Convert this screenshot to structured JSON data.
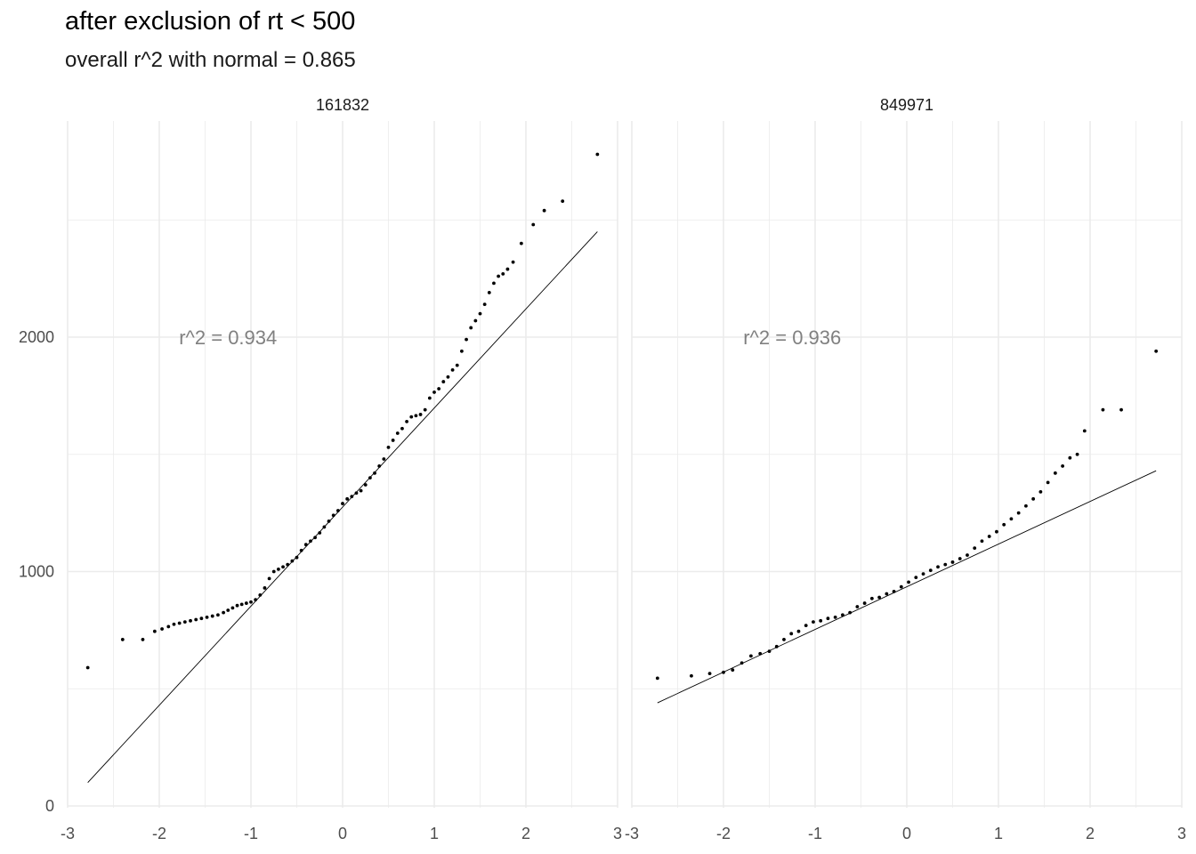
{
  "title": "after exclusion of rt < 500",
  "subtitle": "overall r^2 with normal = 0.865",
  "colors": {
    "grid": "#ebebeb",
    "points": "#000000",
    "line": "#000000",
    "annotation": "#808080"
  },
  "chart_data": {
    "type": "scatter",
    "facets": [
      {
        "strip": "161832",
        "annotation": "r^2 = 0.934",
        "annotation_pos": {
          "x": -1.25,
          "y": 2000
        },
        "line": {
          "x": [
            -2.78,
            2.78
          ],
          "y": [
            100,
            2450
          ]
        },
        "points": {
          "x": [
            -2.78,
            -2.4,
            -2.18,
            -2.05,
            -1.97,
            -1.9,
            -1.84,
            -1.78,
            -1.72,
            -1.66,
            -1.6,
            -1.54,
            -1.48,
            -1.42,
            -1.36,
            -1.3,
            -1.25,
            -1.2,
            -1.15,
            -1.1,
            -1.05,
            -1.0,
            -0.95,
            -0.9,
            -0.85,
            -0.8,
            -0.75,
            -0.7,
            -0.65,
            -0.6,
            -0.55,
            -0.5,
            -0.45,
            -0.4,
            -0.35,
            -0.3,
            -0.25,
            -0.2,
            -0.15,
            -0.1,
            -0.05,
            0.0,
            0.05,
            0.1,
            0.15,
            0.2,
            0.25,
            0.3,
            0.35,
            0.4,
            0.45,
            0.5,
            0.55,
            0.6,
            0.65,
            0.7,
            0.75,
            0.8,
            0.85,
            0.9,
            0.95,
            1.0,
            1.05,
            1.1,
            1.15,
            1.2,
            1.25,
            1.3,
            1.35,
            1.4,
            1.45,
            1.5,
            1.55,
            1.6,
            1.65,
            1.7,
            1.75,
            1.8,
            1.86,
            1.95,
            2.08,
            2.2,
            2.4,
            2.78
          ],
          "y": [
            590,
            710,
            710,
            745,
            755,
            765,
            775,
            780,
            785,
            790,
            795,
            800,
            805,
            810,
            815,
            825,
            835,
            845,
            855,
            860,
            865,
            870,
            880,
            900,
            930,
            970,
            1000,
            1010,
            1020,
            1030,
            1045,
            1060,
            1090,
            1115,
            1130,
            1145,
            1165,
            1190,
            1215,
            1240,
            1260,
            1290,
            1310,
            1320,
            1335,
            1345,
            1370,
            1400,
            1420,
            1450,
            1480,
            1530,
            1560,
            1590,
            1610,
            1640,
            1660,
            1665,
            1670,
            1690,
            1740,
            1765,
            1780,
            1810,
            1830,
            1860,
            1880,
            1940,
            1990,
            2040,
            2070,
            2100,
            2140,
            2190,
            2230,
            2260,
            2270,
            2290,
            2320,
            2400,
            2480,
            2540,
            2580,
            2780
          ]
        }
      },
      {
        "strip": "849971",
        "annotation": "r^2 = 0.936",
        "annotation_pos": {
          "x": -1.25,
          "y": 2000
        },
        "line": {
          "x": [
            -2.72,
            2.72
          ],
          "y": [
            440,
            1430
          ]
        },
        "points": {
          "x": [
            -2.72,
            -2.35,
            -2.15,
            -2.0,
            -1.9,
            -1.8,
            -1.7,
            -1.6,
            -1.5,
            -1.42,
            -1.34,
            -1.26,
            -1.18,
            -1.1,
            -1.02,
            -0.94,
            -0.86,
            -0.78,
            -0.7,
            -0.62,
            -0.54,
            -0.46,
            -0.38,
            -0.3,
            -0.22,
            -0.14,
            -0.06,
            0.02,
            0.1,
            0.18,
            0.26,
            0.34,
            0.42,
            0.5,
            0.58,
            0.66,
            0.74,
            0.82,
            0.9,
            0.98,
            1.06,
            1.14,
            1.22,
            1.3,
            1.38,
            1.46,
            1.54,
            1.62,
            1.7,
            1.78,
            1.86,
            1.94,
            2.14,
            2.34,
            2.72
          ],
          "y": [
            545,
            555,
            565,
            570,
            580,
            610,
            640,
            650,
            660,
            680,
            710,
            735,
            745,
            770,
            785,
            790,
            800,
            805,
            815,
            825,
            850,
            865,
            885,
            890,
            905,
            915,
            935,
            955,
            975,
            990,
            1005,
            1020,
            1030,
            1040,
            1055,
            1070,
            1100,
            1130,
            1150,
            1170,
            1200,
            1225,
            1250,
            1280,
            1310,
            1340,
            1380,
            1420,
            1450,
            1485,
            1500,
            1600,
            1690,
            1690,
            1940
          ]
        }
      }
    ],
    "x_ticks": [
      "-3",
      "-2",
      "-1",
      "0",
      "1",
      "2",
      "3"
    ],
    "x_tick_values": [
      -3,
      -2,
      -1,
      0,
      1,
      2,
      3
    ],
    "y_ticks": [
      "0",
      "1000",
      "2000"
    ],
    "y_tick_values": [
      0,
      1000,
      2000
    ],
    "xlim": [
      -3.0,
      3.0
    ],
    "ylim": [
      0,
      2800
    ],
    "grid": true,
    "legend": "none"
  }
}
